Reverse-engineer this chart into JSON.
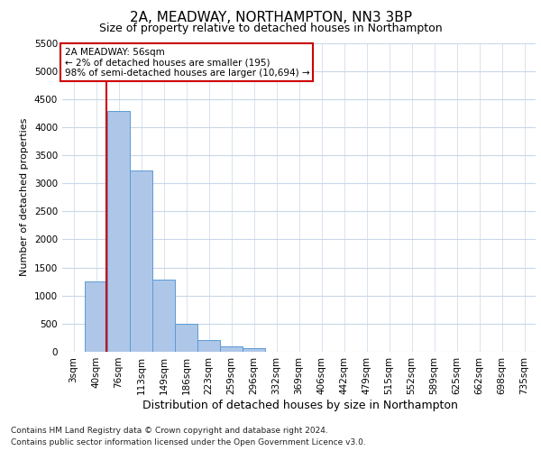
{
  "title1": "2A, MEADWAY, NORTHAMPTON, NN3 3BP",
  "title2": "Size of property relative to detached houses in Northampton",
  "xlabel": "Distribution of detached houses by size in Northampton",
  "ylabel": "Number of detached properties",
  "categories": [
    "3sqm",
    "40sqm",
    "76sqm",
    "113sqm",
    "149sqm",
    "186sqm",
    "223sqm",
    "259sqm",
    "296sqm",
    "332sqm",
    "369sqm",
    "406sqm",
    "442sqm",
    "479sqm",
    "515sqm",
    "552sqm",
    "589sqm",
    "625sqm",
    "662sqm",
    "698sqm",
    "735sqm"
  ],
  "bar_heights": [
    0,
    1250,
    4280,
    3230,
    1280,
    490,
    215,
    100,
    65,
    0,
    0,
    0,
    0,
    0,
    0,
    0,
    0,
    0,
    0,
    0,
    0
  ],
  "bar_color": "#aec6e8",
  "bar_edge_color": "#5b9bd5",
  "annotation_title": "2A MEADWAY: 56sqm",
  "annotation_line1": "← 2% of detached houses are smaller (195)",
  "annotation_line2": "98% of semi-detached houses are larger (10,694) →",
  "ylim": [
    0,
    5500
  ],
  "yticks": [
    0,
    500,
    1000,
    1500,
    2000,
    2500,
    3000,
    3500,
    4000,
    4500,
    5000,
    5500
  ],
  "footer1": "Contains HM Land Registry data © Crown copyright and database right 2024.",
  "footer2": "Contains public sector information licensed under the Open Government Licence v3.0.",
  "bg_color": "#ffffff",
  "grid_color": "#c8d8e8",
  "annotation_box_color": "#ffffff",
  "annotation_box_edge": "#cc0000",
  "line_color": "#cc0000",
  "title1_fontsize": 11,
  "title2_fontsize": 9,
  "ylabel_fontsize": 8,
  "xlabel_fontsize": 9,
  "tick_fontsize": 7.5,
  "footer_fontsize": 6.5
}
